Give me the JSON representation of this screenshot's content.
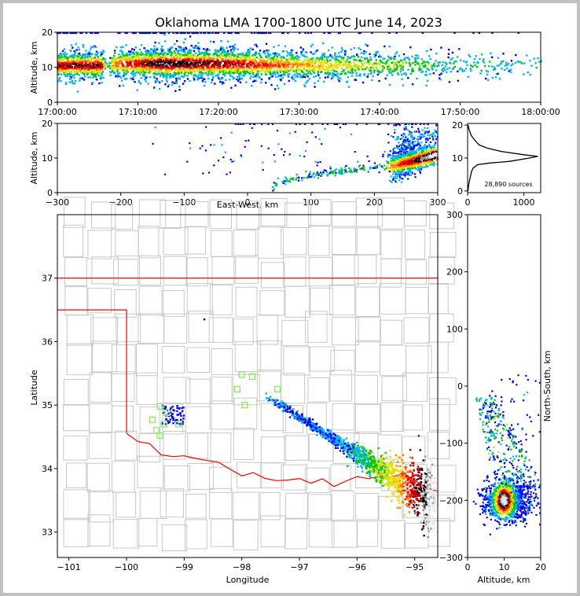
{
  "chart_data": {
    "type": "scatter",
    "title": "Oklahoma LMA 1700-1800 UTC June 14, 2023",
    "panels": [
      {
        "id": "time-height",
        "ylabel": "Altitude, km",
        "ylim": [
          0,
          20
        ],
        "yticks": [
          "0",
          "10",
          "20"
        ],
        "xticks": [
          "17:00:00",
          "17:10:00",
          "17:20:00",
          "17:30:00",
          "17:40:00",
          "17:50:00",
          "18:00:00"
        ],
        "activity": [
          {
            "minute": 0,
            "alt_center": 10.5,
            "alt_spread": 4,
            "intensity": 0.8
          },
          {
            "minute": 5.5,
            "alt_center": 10.5,
            "alt_spread": 4,
            "intensity": 0.8
          },
          {
            "minute": 6,
            "alt_center": 10,
            "alt_spread": 1,
            "intensity": 0
          },
          {
            "minute": 7,
            "alt_center": 11,
            "alt_spread": 4,
            "intensity": 0.55
          },
          {
            "minute": 13,
            "alt_center": 11,
            "alt_spread": 4.5,
            "intensity": 0.95
          },
          {
            "minute": 20,
            "alt_center": 11,
            "alt_spread": 4.5,
            "intensity": 0.8
          },
          {
            "minute": 30,
            "alt_center": 10.5,
            "alt_spread": 4,
            "intensity": 0.5
          },
          {
            "minute": 40,
            "alt_center": 10.5,
            "alt_spread": 4,
            "intensity": 0.25
          },
          {
            "minute": 50,
            "alt_center": 10.5,
            "alt_spread": 3.5,
            "intensity": 0.1
          },
          {
            "minute": 60,
            "alt_center": 10.5,
            "alt_spread": 3,
            "intensity": 0.05
          }
        ]
      },
      {
        "id": "ew-altitude",
        "xlabel": "East-West, km",
        "ylabel": "Altitude, km",
        "xlim": [
          -300,
          300
        ],
        "ylim": [
          0,
          20
        ],
        "xticks": [
          "−300",
          "−200",
          "−100",
          "0",
          "100",
          "200",
          "300"
        ],
        "yticks": [
          "0",
          "10",
          "20"
        ]
      },
      {
        "id": "histogram",
        "xticks": [
          "0",
          "1000"
        ],
        "yticks": [
          "0",
          "10",
          "20"
        ],
        "annotation": "28,890 sources",
        "profile": [
          {
            "alt": 0,
            "count": 5
          },
          {
            "alt": 2,
            "count": 20
          },
          {
            "alt": 4,
            "count": 45
          },
          {
            "alt": 6,
            "count": 70
          },
          {
            "alt": 7,
            "count": 100
          },
          {
            "alt": 8,
            "count": 180
          },
          {
            "alt": 8.5,
            "count": 400
          },
          {
            "alt": 9,
            "count": 750
          },
          {
            "alt": 10,
            "count": 1100
          },
          {
            "alt": 10.5,
            "count": 1250
          },
          {
            "alt": 11,
            "count": 1000
          },
          {
            "alt": 12,
            "count": 600
          },
          {
            "alt": 13,
            "count": 350
          },
          {
            "alt": 14,
            "count": 200
          },
          {
            "alt": 15,
            "count": 150
          },
          {
            "alt": 16,
            "count": 100
          },
          {
            "alt": 17,
            "count": 60
          },
          {
            "alt": 18,
            "count": 40
          },
          {
            "alt": 19,
            "count": 20
          },
          {
            "alt": 20,
            "count": 10
          }
        ]
      },
      {
        "id": "plan-view",
        "xlabel": "Longitude",
        "ylabel": "Latitude",
        "xlim": [
          -101.2,
          -94.6
        ],
        "ylim": [
          32.6,
          38
        ],
        "xticks": [
          "−101",
          "−100",
          "−99",
          "−98",
          "−97",
          "−96",
          "−95"
        ],
        "yticks": [
          "33",
          "34",
          "35",
          "36",
          "37"
        ],
        "stations": [
          [
            -98.0,
            35.48
          ],
          [
            -97.82,
            35.45
          ],
          [
            -98.08,
            35.25
          ],
          [
            -97.95,
            35.0
          ],
          [
            -97.38,
            35.25
          ],
          [
            -99.42,
            34.98
          ],
          [
            -99.3,
            34.88
          ],
          [
            -99.55,
            34.77
          ],
          [
            -99.35,
            34.7
          ],
          [
            -99.1,
            34.7
          ],
          [
            -99.48,
            34.6
          ],
          [
            -99.42,
            34.52
          ]
        ]
      },
      {
        "id": "altitude-ns",
        "xlabel": "Altitude, km",
        "ylabel": "North-South, km",
        "xlim": [
          0,
          20
        ],
        "ylim": [
          -300,
          300
        ],
        "xticks": [
          "0",
          "10",
          "20"
        ],
        "yticks": [
          "−300",
          "−200",
          "−100",
          "0",
          "100",
          "200",
          "300"
        ]
      }
    ]
  },
  "colors": {
    "scale": [
      "#0000ff",
      "#00b4ff",
      "#00c800",
      "#c8e600",
      "#ffd700",
      "#ff8000",
      "#ff0000",
      "#a00000",
      "#000000",
      "#999999",
      "#e8e8e8"
    ],
    "state_border": "#ff0000",
    "county_lines": "#c8c8c8",
    "stations": "#88ee55",
    "outer_frame": "#c0c0c0"
  }
}
